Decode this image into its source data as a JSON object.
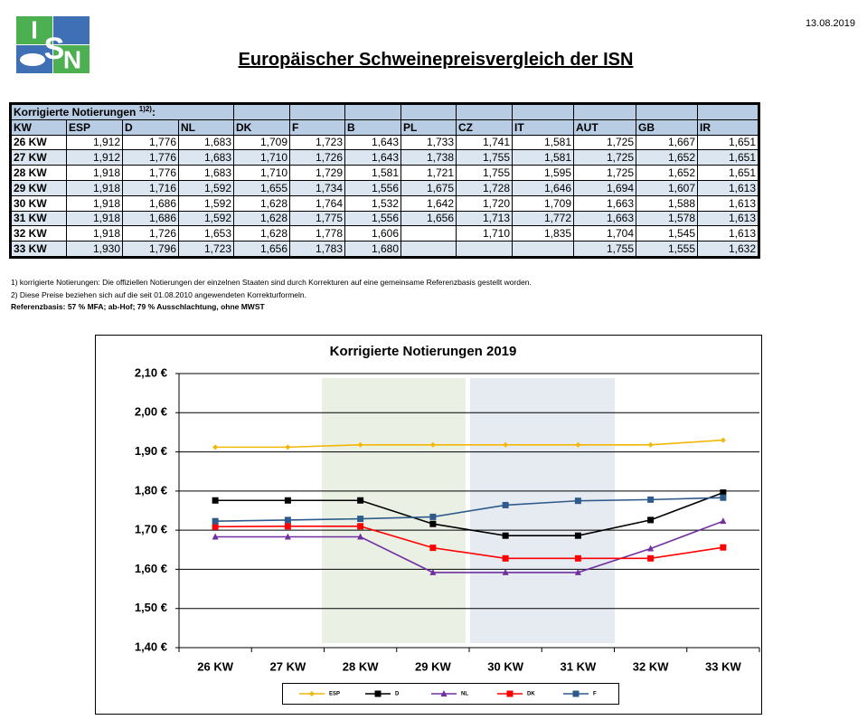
{
  "header": {
    "logo": [
      "I",
      "S",
      "N"
    ],
    "date": "13.08.2019",
    "title": "Europäischer Schweinepreisvergleich der ISN"
  },
  "table": {
    "caption": "Korrigierte Notierungen",
    "caption_note": "1)2)",
    "caption_end": ":",
    "columns": [
      "KW",
      "ESP",
      "D",
      "NL",
      "DK",
      "F",
      "B",
      "PL",
      "CZ",
      "IT",
      "AUT",
      "GB",
      "IR"
    ],
    "rows": [
      [
        "26 KW",
        "1,912",
        "1,776",
        "1,683",
        "1,709",
        "1,723",
        "1,643",
        "1,733",
        "1,741",
        "1,581",
        "1,725",
        "1,667",
        "1,651"
      ],
      [
        "27 KW",
        "1,912",
        "1,776",
        "1,683",
        "1,710",
        "1,726",
        "1,643",
        "1,738",
        "1,755",
        "1,581",
        "1,725",
        "1,652",
        "1,651"
      ],
      [
        "28 KW",
        "1,918",
        "1,776",
        "1,683",
        "1,710",
        "1,729",
        "1,581",
        "1,721",
        "1,755",
        "1,595",
        "1,725",
        "1,652",
        "1,651"
      ],
      [
        "29 KW",
        "1,918",
        "1,716",
        "1,592",
        "1,655",
        "1,734",
        "1,556",
        "1,675",
        "1,728",
        "1,646",
        "1,694",
        "1,607",
        "1,613"
      ],
      [
        "30 KW",
        "1,918",
        "1,686",
        "1,592",
        "1,628",
        "1,764",
        "1,532",
        "1,642",
        "1,720",
        "1,709",
        "1,663",
        "1,588",
        "1,613"
      ],
      [
        "31 KW",
        "1,918",
        "1,686",
        "1,592",
        "1,628",
        "1,775",
        "1,556",
        "1,656",
        "1,713",
        "1,772",
        "1,663",
        "1,578",
        "1,613"
      ],
      [
        "32 KW",
        "1,918",
        "1,726",
        "1,653",
        "1,628",
        "1,778",
        "1,606",
        null,
        "1,710",
        "1,835",
        "1,704",
        "1,545",
        "1,613"
      ],
      [
        "33 KW",
        "1,930",
        "1,796",
        "1,723",
        "1,656",
        "1,783",
        "1,680",
        null,
        null,
        null,
        "1,755",
        "1,555",
        "1,632"
      ]
    ]
  },
  "footnotes": [
    "1) korrigierte Notierungen: Die offiziellen Notierungen der einzelnen Staaten sind durch Korrekturen auf eine gemeinsame Referenzbasis gestellt worden.",
    "2) Diese Preise beziehen sich auf die seit 01.08.2010 angewendeten Korrekturformeln.",
    "Referenzbasis: 57 % MFA; ab-Hof; 79 % Ausschlachtung, ohne MWST"
  ],
  "chart_data": {
    "type": "line",
    "title": "Korrigierte Notierungen 2019",
    "categories": [
      "26 KW",
      "27 KW",
      "28 KW",
      "29 KW",
      "30 KW",
      "31 KW",
      "32 KW",
      "33 KW"
    ],
    "series": [
      {
        "name": "ESP",
        "color": "#f2b705",
        "marker": "diamond",
        "values": [
          1.912,
          1.912,
          1.918,
          1.918,
          1.918,
          1.918,
          1.918,
          1.93
        ]
      },
      {
        "name": "D",
        "color": "#000000",
        "marker": "square",
        "values": [
          1.776,
          1.776,
          1.776,
          1.716,
          1.686,
          1.686,
          1.726,
          1.796
        ]
      },
      {
        "name": "NL",
        "color": "#7030a0",
        "marker": "triangle",
        "values": [
          1.683,
          1.683,
          1.683,
          1.592,
          1.592,
          1.592,
          1.653,
          1.723
        ]
      },
      {
        "name": "DK",
        "color": "#ff0000",
        "marker": "square",
        "values": [
          1.709,
          1.71,
          1.71,
          1.655,
          1.628,
          1.628,
          1.628,
          1.656
        ]
      },
      {
        "name": "F",
        "color": "#2f5b8c",
        "marker": "square",
        "values": [
          1.723,
          1.726,
          1.729,
          1.734,
          1.764,
          1.775,
          1.778,
          1.783
        ]
      }
    ],
    "ylim": [
      1.4,
      2.1
    ],
    "yticks": [
      {
        "value": 1.4,
        "label": "1,40 €"
      },
      {
        "value": 1.5,
        "label": "1,50 €"
      },
      {
        "value": 1.6,
        "label": "1,60 €"
      },
      {
        "value": 1.7,
        "label": "1,70 €"
      },
      {
        "value": 1.8,
        "label": "1,80 €"
      },
      {
        "value": 1.9,
        "label": "1,90 €"
      },
      {
        "value": 2.0,
        "label": "2,00 €"
      },
      {
        "value": 2.1,
        "label": "2,10 €"
      }
    ],
    "grid": true
  }
}
